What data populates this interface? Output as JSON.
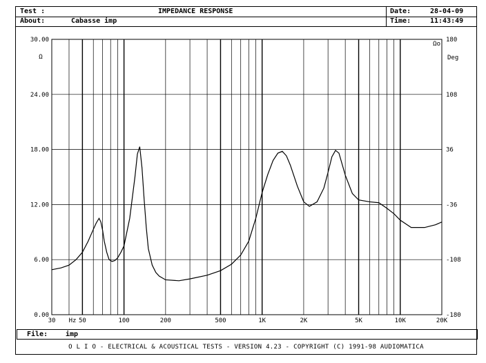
{
  "header": {
    "test_label": "Test :",
    "title": "IMPEDANCE RESPONSE",
    "date_label": "Date:",
    "date_value": "28-04-09",
    "about_label": "About:",
    "about_value": "Cabasse imp",
    "time_label": "Time:",
    "time_value": "11:43:49"
  },
  "footer": {
    "file_label": "File:",
    "file_value": "imp",
    "copyright": "O L I O  -  ELECTRICAL & ACOUSTICAL TESTS  -  VERSION 4.23  -  COPYRIGHT (C) 1991-98 AUDIOMATICA"
  },
  "chart_data": {
    "type": "line",
    "title": "IMPEDANCE RESPONSE",
    "x_scale": "log",
    "xlim": [
      30,
      20000
    ],
    "ylim": [
      0,
      30
    ],
    "y2lim": [
      -180,
      180
    ],
    "grid": true,
    "y_unit": "Ω",
    "y2_unit": "Deg",
    "x_unit": "Hz",
    "x_ticks": [
      {
        "value": 30,
        "label": "30"
      },
      {
        "value": 50,
        "label": "50"
      },
      {
        "value": 100,
        "label": "100"
      },
      {
        "value": 200,
        "label": "200"
      },
      {
        "value": 500,
        "label": "500"
      },
      {
        "value": 1000,
        "label": "1K"
      },
      {
        "value": 2000,
        "label": "2K"
      },
      {
        "value": 5000,
        "label": "5K"
      },
      {
        "value": 10000,
        "label": "10K"
      },
      {
        "value": 20000,
        "label": "20K"
      }
    ],
    "y_ticks": [
      {
        "value": 0,
        "label": "0.00"
      },
      {
        "value": 6,
        "label": "6.00"
      },
      {
        "value": 12,
        "label": "12.00"
      },
      {
        "value": 18,
        "label": "18.00"
      },
      {
        "value": 24,
        "label": "24.00"
      },
      {
        "value": 30,
        "label": "30.00"
      }
    ],
    "y2_ticks": [
      {
        "value": -180,
        "label": "-180"
      },
      {
        "value": -108,
        "label": "-108"
      },
      {
        "value": -36,
        "label": "-36"
      },
      {
        "value": 36,
        "label": "36"
      },
      {
        "value": 108,
        "label": "108"
      },
      {
        "value": 180,
        "label": "180"
      }
    ],
    "curve_label": "Ωo",
    "series": [
      {
        "x": [
          30,
          35,
          40,
          45,
          50,
          55,
          60,
          63,
          66,
          68,
          70,
          72,
          75,
          78,
          82,
          86,
          90,
          95,
          100,
          110,
          120,
          125,
          130,
          135,
          140,
          145,
          150,
          160,
          170,
          180,
          200,
          250,
          300,
          400,
          500,
          600,
          700,
          800,
          900,
          1000,
          1100,
          1200,
          1300,
          1400,
          1500,
          1600,
          1800,
          2000,
          2200,
          2500,
          2800,
          3000,
          3200,
          3400,
          3600,
          4000,
          4500,
          5000,
          6000,
          7000,
          8000,
          9000,
          10000,
          12000,
          15000,
          18000,
          20000
        ],
        "y": [
          4.9,
          5.1,
          5.4,
          6.0,
          6.8,
          8.0,
          9.3,
          10.0,
          10.5,
          10.1,
          9.2,
          8.0,
          6.8,
          6.0,
          5.8,
          5.9,
          6.2,
          6.8,
          7.5,
          10.5,
          15.0,
          17.5,
          18.3,
          16.0,
          12.5,
          9.5,
          7.2,
          5.4,
          4.6,
          4.2,
          3.8,
          3.7,
          3.9,
          4.3,
          4.8,
          5.5,
          6.5,
          8.0,
          10.5,
          13.3,
          15.3,
          16.8,
          17.6,
          17.8,
          17.3,
          16.3,
          14.0,
          12.3,
          11.8,
          12.3,
          13.8,
          15.5,
          17.2,
          17.9,
          17.6,
          15.2,
          13.2,
          12.5,
          12.3,
          12.2,
          11.6,
          11.0,
          10.3,
          9.5,
          9.5,
          9.8,
          10.1
        ]
      }
    ]
  }
}
